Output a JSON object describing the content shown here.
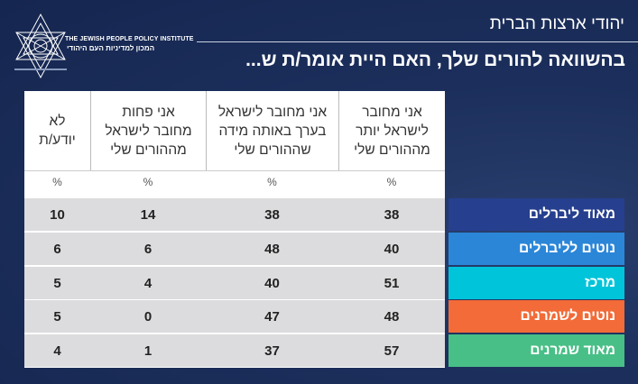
{
  "logo": {
    "english": "THE JEWISH PEOPLE POLICY INSTITUTE",
    "hebrew": "המכון למדיניות העם היהודי"
  },
  "header": {
    "subtitle": "יהודי ארצות הברית",
    "title": "בהשוואה להורים שלך, האם היית אומר/ת ש..."
  },
  "table": {
    "columns": [
      {
        "label": "אני מחובר לישראל יותר מההורים שלי",
        "unit": "%"
      },
      {
        "label": "אני מחובר לישראל בערך באותה מידה שההורים שלי",
        "unit": "%"
      },
      {
        "label": "אני פחות מחובר לישראל מההורים שלי",
        "unit": "%"
      },
      {
        "label": "לא יודע/ת",
        "unit": "%"
      }
    ],
    "rows": [
      {
        "label": "מאוד ליברלים",
        "color": "#263f8e",
        "values": [
          "38",
          "38",
          "14",
          "10"
        ]
      },
      {
        "label": "נוטים לליברלים",
        "color": "#2b86d8",
        "values": [
          "40",
          "48",
          "6",
          "6"
        ]
      },
      {
        "label": "מרכז",
        "color": "#00c4da",
        "values": [
          "51",
          "40",
          "4",
          "5"
        ]
      },
      {
        "label": "נוטים לשמרנים",
        "color": "#f26b38",
        "values": [
          "48",
          "47",
          "0",
          "5"
        ]
      },
      {
        "label": "מאוד שמרנים",
        "color": "#48bf86",
        "values": [
          "57",
          "37",
          "1",
          "4"
        ]
      }
    ]
  }
}
